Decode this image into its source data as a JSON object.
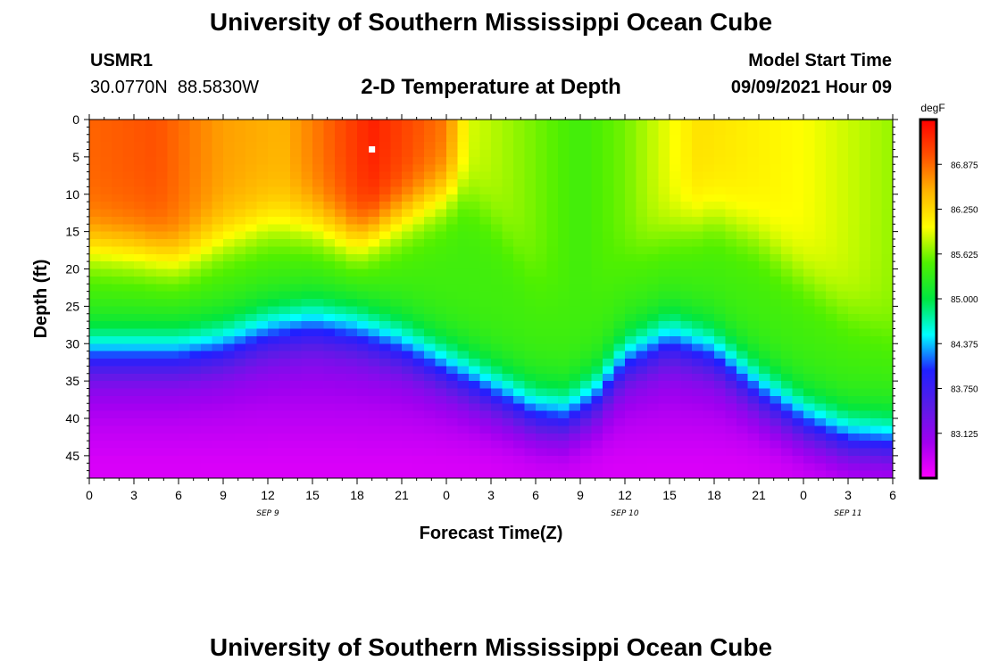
{
  "header": {
    "title_top": "University of Southern Mississippi Ocean Cube",
    "station_id": "USMR1",
    "coordinates": "30.0770N  88.5830W",
    "plot_title": "2-D Temperature at Depth",
    "model_label": "Model Start Time",
    "model_time": "09/09/2021 Hour 09",
    "title_bottom": "University of Southern Mississippi Ocean Cube"
  },
  "chart_data": {
    "type": "heatmap",
    "title": "2-D Temperature at Depth",
    "xlabel": "Forecast Time(Z)",
    "ylabel": "Depth (ft)",
    "x_range_hours": [
      0,
      54
    ],
    "x_ticks": [
      {
        "h": 0,
        "label": "0"
      },
      {
        "h": 3,
        "label": "3"
      },
      {
        "h": 6,
        "label": "6"
      },
      {
        "h": 9,
        "label": "9"
      },
      {
        "h": 12,
        "label": "12"
      },
      {
        "h": 15,
        "label": "15"
      },
      {
        "h": 18,
        "label": "18"
      },
      {
        "h": 21,
        "label": "21"
      },
      {
        "h": 24,
        "label": "0"
      },
      {
        "h": 27,
        "label": "3"
      },
      {
        "h": 30,
        "label": "6"
      },
      {
        "h": 33,
        "label": "9"
      },
      {
        "h": 36,
        "label": "12"
      },
      {
        "h": 39,
        "label": "15"
      },
      {
        "h": 42,
        "label": "18"
      },
      {
        "h": 45,
        "label": "21"
      },
      {
        "h": 48,
        "label": "0"
      },
      {
        "h": 51,
        "label": "3"
      },
      {
        "h": 54,
        "label": "6"
      }
    ],
    "date_labels": [
      {
        "h": 12,
        "label": "SEP 9"
      },
      {
        "h": 36,
        "label": "SEP 10"
      },
      {
        "h": 51,
        "label": "SEP 11"
      }
    ],
    "y_range_ft": [
      0,
      48
    ],
    "y_ticks": [
      0,
      5,
      10,
      15,
      20,
      25,
      30,
      35,
      40,
      45
    ],
    "colorbar": {
      "unit": "degF",
      "range": [
        82.5,
        87.5
      ],
      "labels": [
        "86.875",
        "86.250",
        "85.625",
        "85.000",
        "84.375",
        "83.750",
        "83.125"
      ],
      "colors": [
        "#ff00ff",
        "#a000f0",
        "#5a1ce6",
        "#2020ff",
        "#00ffff",
        "#00e640",
        "#50f000",
        "#ffff00",
        "#ffb400",
        "#ff5000",
        "#ff0000"
      ]
    },
    "marker": {
      "h": 19,
      "depth": 4
    },
    "surface_temperature_degF": [
      {
        "h": 0,
        "v": 86.9
      },
      {
        "h": 4.5,
        "v": 87.0
      },
      {
        "h": 9,
        "v": 86.6
      },
      {
        "h": 13,
        "v": 86.5
      },
      {
        "h": 19,
        "v": 87.3
      },
      {
        "h": 24,
        "v": 86.8
      },
      {
        "h": 25.5,
        "v": 85.9
      },
      {
        "h": 30,
        "v": 85.6
      },
      {
        "h": 33,
        "v": 85.4
      },
      {
        "h": 36,
        "v": 85.6
      },
      {
        "h": 41,
        "v": 86.2
      },
      {
        "h": 48,
        "v": 86.0
      },
      {
        "h": 54,
        "v": 85.7
      }
    ],
    "warm_layer_bottom_ft": [
      {
        "h": 0,
        "v": 17
      },
      {
        "h": 3,
        "v": 17.5
      },
      {
        "h": 6,
        "v": 18.5
      },
      {
        "h": 9,
        "v": 16
      },
      {
        "h": 12,
        "v": 14
      },
      {
        "h": 15,
        "v": 14
      },
      {
        "h": 18,
        "v": 16
      },
      {
        "h": 20,
        "v": 14
      },
      {
        "h": 23,
        "v": 11
      },
      {
        "h": 25,
        "v": 9
      },
      {
        "h": 27,
        "v": 13
      },
      {
        "h": 30,
        "v": 22
      },
      {
        "h": 33,
        "v": 24
      },
      {
        "h": 36,
        "v": 19
      },
      {
        "h": 39,
        "v": 15
      },
      {
        "h": 42,
        "v": 13
      },
      {
        "h": 45,
        "v": 16
      },
      {
        "h": 48,
        "v": 21
      },
      {
        "h": 51,
        "v": 26
      },
      {
        "h": 54,
        "v": 29
      }
    ],
    "thermocline_center_ft": [
      {
        "h": 0,
        "v": 31
      },
      {
        "h": 3,
        "v": 31
      },
      {
        "h": 6,
        "v": 31
      },
      {
        "h": 9,
        "v": 30
      },
      {
        "h": 12,
        "v": 28
      },
      {
        "h": 15,
        "v": 27
      },
      {
        "h": 18,
        "v": 28
      },
      {
        "h": 21,
        "v": 30
      },
      {
        "h": 24,
        "v": 33
      },
      {
        "h": 27,
        "v": 36
      },
      {
        "h": 30,
        "v": 39
      },
      {
        "h": 32,
        "v": 39.5
      },
      {
        "h": 34,
        "v": 37
      },
      {
        "h": 36,
        "v": 32
      },
      {
        "h": 39,
        "v": 29
      },
      {
        "h": 42,
        "v": 31
      },
      {
        "h": 45,
        "v": 36
      },
      {
        "h": 48,
        "v": 40
      },
      {
        "h": 51,
        "v": 42.5
      },
      {
        "h": 54,
        "v": 43
      }
    ]
  }
}
